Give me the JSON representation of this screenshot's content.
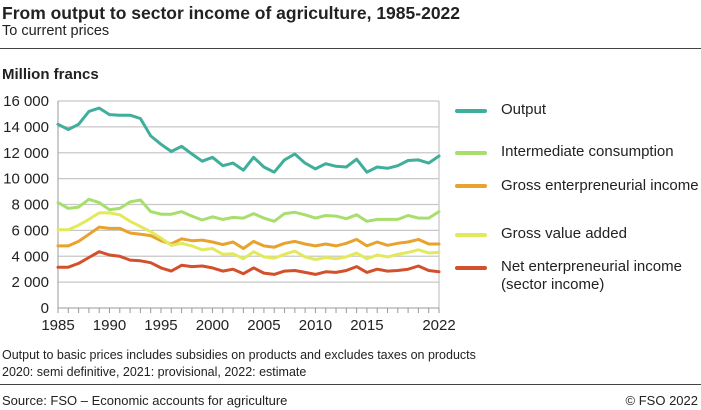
{
  "header": {
    "title": "From output to sector income of agriculture, 1985-2022",
    "subtitle": "To current prices"
  },
  "footer": {
    "notes": [
      "Output to basic prices includes subsidies on products and excludes taxes on products",
      "2020: semi definitive, 2021: provisional, 2022: estimate"
    ],
    "source": "Source: FSO – Economic accounts for agriculture",
    "copyright": "© FSO 2022"
  },
  "chart_data": {
    "type": "line",
    "title": "From output to sector income of agriculture, 1985-2022",
    "subtitle": "To current prices",
    "ylabel": "Million francs",
    "xlabel": "",
    "ylim": [
      0,
      16000
    ],
    "xlim": [
      1985,
      2022
    ],
    "yticks": [
      "0",
      "2 000",
      "4 000",
      "6 000",
      "8 000",
      "10 000",
      "12 000",
      "14 000",
      "16 000"
    ],
    "xticks": [
      "1985",
      "1990",
      "1995",
      "2000",
      "2005",
      "2010",
      "2015",
      "2022"
    ],
    "grid": true,
    "legend": "right",
    "x": [
      1985,
      1986,
      1987,
      1988,
      1989,
      1990,
      1991,
      1992,
      1993,
      1994,
      1995,
      1996,
      1997,
      1998,
      1999,
      2000,
      2001,
      2002,
      2003,
      2004,
      2005,
      2006,
      2007,
      2008,
      2009,
      2010,
      2011,
      2012,
      2013,
      2014,
      2015,
      2016,
      2017,
      2018,
      2019,
      2020,
      2021,
      2022
    ],
    "series": [
      {
        "name": "Output",
        "color": "#3fae9a",
        "values": [
          14200,
          13800,
          14200,
          15200,
          15450,
          14950,
          14900,
          14900,
          14650,
          13300,
          12650,
          12100,
          12500,
          11900,
          11350,
          11650,
          11000,
          11200,
          10650,
          11650,
          10900,
          10500,
          11450,
          11900,
          11200,
          10750,
          11150,
          10950,
          10900,
          11500,
          10500,
          10900,
          10800,
          11000,
          11400,
          11450,
          11200,
          11750
        ]
      },
      {
        "name": "Intermediate consumption",
        "color": "#a8de6c",
        "values": [
          8150,
          7700,
          7800,
          8400,
          8150,
          7600,
          7700,
          8200,
          8350,
          7450,
          7250,
          7250,
          7450,
          7100,
          6800,
          7050,
          6850,
          7000,
          6950,
          7300,
          6950,
          6700,
          7300,
          7400,
          7200,
          6950,
          7150,
          7100,
          6900,
          7200,
          6700,
          6850,
          6850,
          6850,
          7150,
          6950,
          6950,
          7450
        ]
      },
      {
        "name": "Gross enterpreneurial income",
        "color": "#e8a22e",
        "values": [
          4800,
          4800,
          5150,
          5700,
          6250,
          6150,
          6150,
          5800,
          5700,
          5600,
          5200,
          4950,
          5350,
          5200,
          5250,
          5100,
          4900,
          5100,
          4600,
          5150,
          4800,
          4700,
          5000,
          5150,
          4950,
          4800,
          4950,
          4800,
          5000,
          5300,
          4800,
          5100,
          4850,
          5000,
          5100,
          5300,
          4950,
          4950
        ]
      },
      {
        "name": "Gross value added",
        "color": "#e2ea5c",
        "values": [
          6050,
          6050,
          6400,
          6850,
          7350,
          7350,
          7200,
          6700,
          6300,
          5900,
          5400,
          4850,
          5000,
          4800,
          4500,
          4600,
          4150,
          4200,
          3800,
          4350,
          3950,
          3850,
          4150,
          4400,
          3950,
          3750,
          3900,
          3800,
          3950,
          4250,
          3800,
          4100,
          3950,
          4150,
          4300,
          4500,
          4250,
          4300
        ]
      },
      {
        "name": "Net enterpreneurial income (sector income)",
        "color": "#d2512c",
        "values": [
          3150,
          3150,
          3450,
          3900,
          4350,
          4100,
          4000,
          3700,
          3650,
          3500,
          3100,
          2850,
          3300,
          3200,
          3250,
          3100,
          2850,
          3000,
          2650,
          3100,
          2700,
          2600,
          2850,
          2900,
          2750,
          2600,
          2800,
          2750,
          2900,
          3200,
          2750,
          3000,
          2850,
          2900,
          3000,
          3250,
          2900,
          2800
        ]
      }
    ]
  }
}
